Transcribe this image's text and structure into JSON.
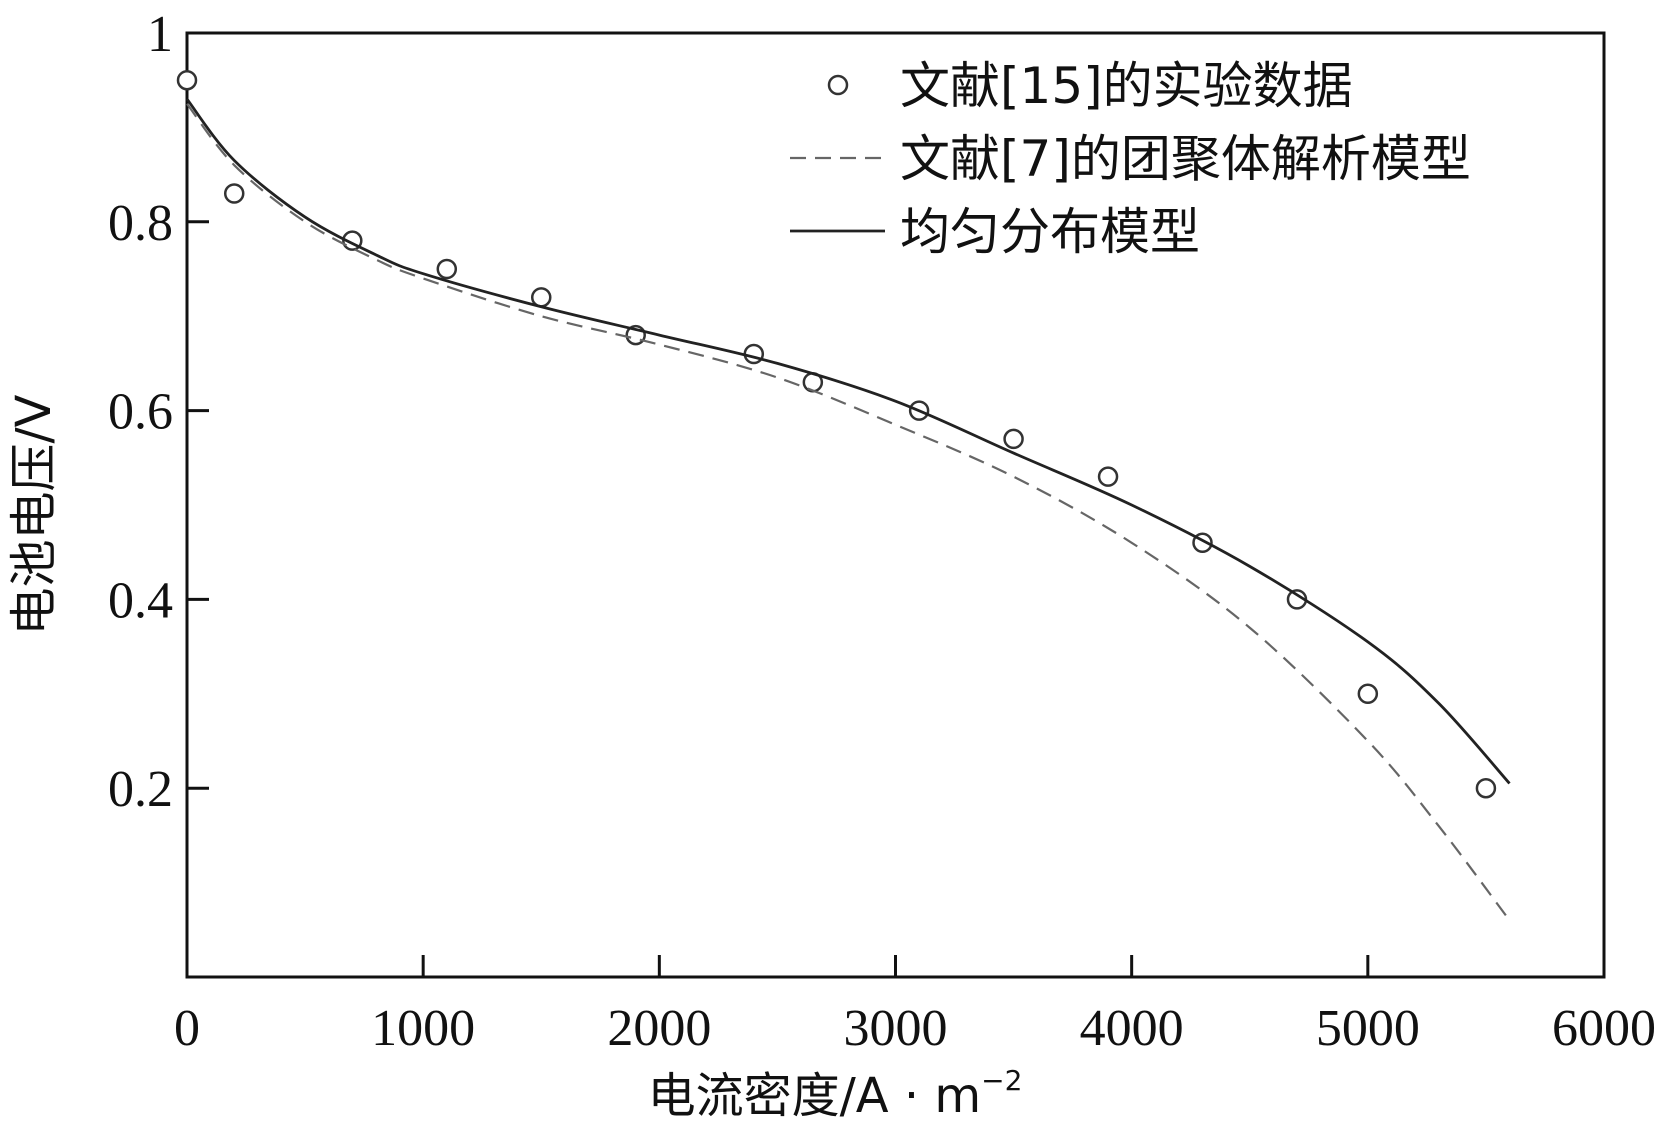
{
  "chart_data": {
    "type": "line",
    "xlabel": "电流密度/A · m",
    "xlabel_sup": "−2",
    "ylabel": "电池电压/V",
    "xlim": [
      0,
      6000
    ],
    "ylim": [
      0,
      1
    ],
    "x_ticks": [
      0,
      1000,
      2000,
      3000,
      4000,
      5000,
      6000
    ],
    "x_tick_labels": [
      "0",
      "1000",
      "2000",
      "3000",
      "4000",
      "5000",
      "6000"
    ],
    "y_ticks": [
      0.2,
      0.4,
      0.6,
      0.8,
      1.0
    ],
    "y_tick_labels": [
      "0.2",
      "0.4",
      "0.6",
      "0.8",
      "1"
    ],
    "grid": false,
    "legend_position": "top-right",
    "series": [
      {
        "name": "文献[15]的实验数据",
        "style": "markers",
        "marker": "open-circle",
        "color": "#333333",
        "x": [
          0,
          200,
          700,
          1100,
          1500,
          1900,
          2400,
          2650,
          3100,
          3500,
          3900,
          4300,
          4700,
          5000,
          5500
        ],
        "y": [
          0.95,
          0.83,
          0.78,
          0.75,
          0.72,
          0.68,
          0.66,
          0.63,
          0.6,
          0.57,
          0.53,
          0.46,
          0.4,
          0.3,
          0.2
        ]
      },
      {
        "name": "文献[7]的团聚体解析模型",
        "style": "dashed",
        "color": "#666666",
        "x": [
          0,
          200,
          500,
          800,
          1000,
          1500,
          2000,
          2500,
          3000,
          3500,
          4000,
          4500,
          5000,
          5300,
          5600
        ],
        "y": [
          0.925,
          0.86,
          0.8,
          0.76,
          0.74,
          0.7,
          0.67,
          0.635,
          0.585,
          0.53,
          0.46,
          0.37,
          0.25,
          0.16,
          0.06
        ]
      },
      {
        "name": "均匀分布模型",
        "style": "solid",
        "color": "#222222",
        "x": [
          0,
          200,
          500,
          800,
          1000,
          1500,
          2000,
          2500,
          3000,
          3500,
          4000,
          4500,
          5000,
          5300,
          5600
        ],
        "y": [
          0.93,
          0.865,
          0.805,
          0.765,
          0.745,
          0.71,
          0.68,
          0.65,
          0.61,
          0.555,
          0.5,
          0.435,
          0.355,
          0.29,
          0.205
        ]
      }
    ]
  }
}
